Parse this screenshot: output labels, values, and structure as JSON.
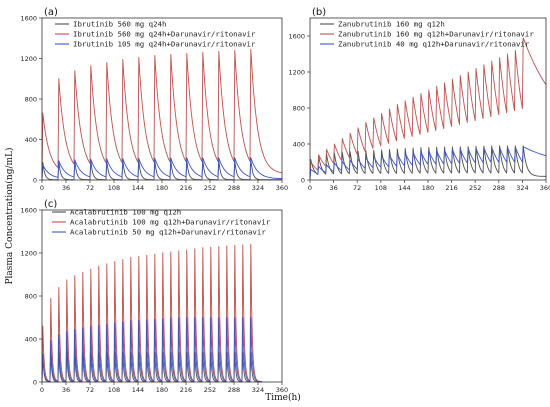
{
  "figure": {
    "ylabel": "Plasma Concentration(ng/mL)",
    "xlabel": "Time(h)"
  },
  "chart_data": [
    {
      "panel": "(a)",
      "type": "line",
      "xlim": [
        0,
        360
      ],
      "ylim": [
        0,
        1600
      ],
      "xticks": [
        0,
        36,
        72,
        108,
        144,
        180,
        216,
        252,
        288,
        324,
        360
      ],
      "yticks": [
        0,
        400,
        800,
        1200,
        1600
      ],
      "dosing": {
        "interval_h": 24,
        "n_doses": 14,
        "end_h": 360
      },
      "legend_position": "top-left",
      "series": [
        {
          "name": "Ibrutinib 560 mg q24h",
          "color": "#4d4d4d",
          "peaks": [
            175,
            180,
            185,
            188,
            190,
            190,
            190,
            190,
            190,
            190,
            190,
            190,
            190,
            190
          ],
          "trough": 3,
          "decay_rate": 0.35
        },
        {
          "name": "Ibrutinib 560 mg q24h+Darunavir/ritonavir",
          "color": "#c0504d",
          "peaks": [
            660,
            1000,
            1080,
            1130,
            1160,
            1190,
            1210,
            1230,
            1240,
            1250,
            1260,
            1270,
            1280,
            1290
          ],
          "trough": 60,
          "decay_rate": 0.1
        },
        {
          "name": "Ibrutinib 105 mg q24h+Darunavir/ritonavir",
          "color": "#3b55c9",
          "peaks": [
            150,
            190,
            200,
            205,
            210,
            212,
            214,
            216,
            218,
            220,
            220,
            220,
            220,
            222
          ],
          "trough": 12,
          "decay_rate": 0.1
        }
      ]
    },
    {
      "panel": "(b)",
      "type": "line",
      "xlim": [
        0,
        360
      ],
      "ylim": [
        0,
        1800
      ],
      "xticks": [
        0,
        36,
        72,
        108,
        144,
        180,
        216,
        252,
        288,
        324,
        360
      ],
      "yticks": [
        0,
        400,
        800,
        1200,
        1600
      ],
      "dosing": {
        "interval_h": 12,
        "n_doses": 28,
        "end_h": 360
      },
      "legend_position": "top-left",
      "series": [
        {
          "name": "Zanubrutinib 160 mg q12h",
          "color": "#4d4d4d",
          "peaks": [
            230,
            270,
            290,
            300,
            310,
            315,
            320,
            325,
            330,
            335,
            340,
            345,
            350,
            355,
            360,
            362,
            364,
            366,
            368,
            370,
            372,
            374,
            376,
            378,
            380,
            380,
            380,
            380
          ],
          "trough": 40,
          "decay_rate": 0.2
        },
        {
          "name": "Zanubrutinib 160 mg q12h+Darunavir/ritonavir",
          "color": "#c0504d",
          "peaks": [
            200,
            280,
            340,
            400,
            460,
            520,
            580,
            640,
            690,
            740,
            790,
            840,
            880,
            920,
            960,
            1000,
            1040,
            1080,
            1120,
            1160,
            1200,
            1240,
            1280,
            1320,
            1360,
            1400,
            1440,
            1580
          ],
          "trough_ratio": 0.55,
          "tail_end": 1060
        },
        {
          "name": "Zanubrutinib 40 mg q12h+Darunavir/ritonavir",
          "color": "#3b55c9",
          "peaks": [
            120,
            150,
            170,
            190,
            205,
            220,
            235,
            250,
            260,
            270,
            280,
            290,
            300,
            308,
            315,
            322,
            328,
            334,
            340,
            345,
            350,
            355,
            360,
            362,
            364,
            366,
            368,
            370
          ],
          "trough_ratio": 0.55,
          "tail_end": 270
        }
      ]
    },
    {
      "panel": "(c)",
      "type": "line",
      "xlim": [
        0,
        360
      ],
      "ylim": [
        0,
        1600
      ],
      "xticks": [
        0,
        36,
        72,
        108,
        144,
        180,
        216,
        252,
        288,
        324,
        360
      ],
      "yticks": [
        0,
        400,
        800,
        1200,
        1600
      ],
      "dosing": {
        "interval_h": 12,
        "n_doses": 27,
        "end_h": 330
      },
      "legend_position": "top-left",
      "series": [
        {
          "name": "Acalabrutinib 100 mg q12h",
          "color": "#4d4d4d",
          "peaks": [
            260,
            270,
            275,
            280,
            280,
            280,
            280,
            280,
            280,
            280,
            280,
            280,
            280,
            280,
            280,
            280,
            280,
            280,
            280,
            280,
            280,
            280,
            280,
            280,
            280,
            280,
            280
          ],
          "trough": 2,
          "decay_rate": 0.6
        },
        {
          "name": "Acalabrutinib 100 mg q12h+Darunavir/ritonavir",
          "color": "#c0504d",
          "peaks": [
            520,
            780,
            880,
            950,
            990,
            1020,
            1050,
            1080,
            1100,
            1120,
            1140,
            1160,
            1170,
            1180,
            1190,
            1200,
            1210,
            1220,
            1230,
            1240,
            1250,
            1255,
            1260,
            1265,
            1270,
            1275,
            1280
          ],
          "trough": 5,
          "decay_rate": 0.5
        },
        {
          "name": "Acalabrutinib 50 mg q12h+Darunavir/ritonavir",
          "color": "#3b55c9",
          "peaks": [
            260,
            390,
            440,
            470,
            490,
            505,
            520,
            530,
            540,
            550,
            560,
            570,
            575,
            580,
            585,
            590,
            595,
            600,
            600,
            600,
            600,
            600,
            600,
            600,
            600,
            600,
            600
          ],
          "trough": 3,
          "decay_rate": 0.5
        }
      ]
    }
  ]
}
